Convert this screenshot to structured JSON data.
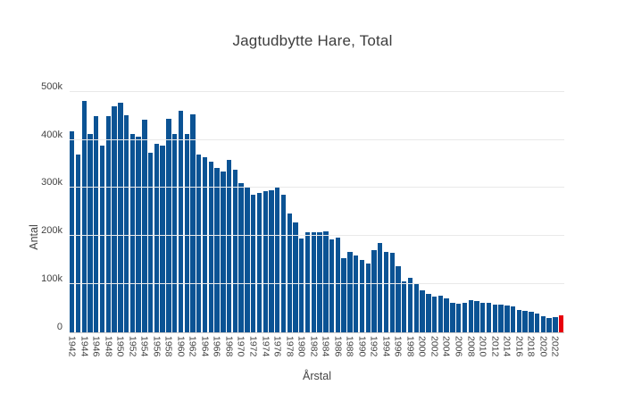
{
  "chart_data": {
    "type": "bar",
    "title": "Jagtudbytte Hare, Total",
    "xlabel": "Årstal",
    "ylabel": "Antal",
    "ylim": [
      0,
      505000
    ],
    "grid": true,
    "legend": "none",
    "background": "#ffffff",
    "bar_color": "#0b5394",
    "highlight_color": "#e8000b",
    "highlight_index": 81,
    "xtick_every": 2,
    "ytick_values": [
      0,
      100000,
      200000,
      300000,
      400000,
      500000
    ],
    "ytick_labels": [
      "0",
      "100k",
      "200k",
      "300k",
      "400k",
      "500k"
    ],
    "categories": [
      1942,
      1943,
      1944,
      1945,
      1946,
      1947,
      1948,
      1949,
      1950,
      1951,
      1952,
      1953,
      1954,
      1955,
      1956,
      1957,
      1958,
      1959,
      1960,
      1961,
      1962,
      1963,
      1964,
      1965,
      1966,
      1967,
      1968,
      1969,
      1970,
      1971,
      1972,
      1973,
      1974,
      1975,
      1976,
      1977,
      1978,
      1979,
      1980,
      1981,
      1982,
      1983,
      1984,
      1985,
      1986,
      1987,
      1988,
      1989,
      1990,
      1991,
      1992,
      1993,
      1994,
      1995,
      1996,
      1997,
      1998,
      1999,
      2000,
      2001,
      2002,
      2003,
      2004,
      2005,
      2006,
      2007,
      2008,
      2009,
      2010,
      2011,
      2012,
      2013,
      2014,
      2015,
      2016,
      2017,
      2018,
      2019,
      2020,
      2021,
      2022,
      2023
    ],
    "values": [
      417000,
      370000,
      481000,
      413000,
      450000,
      388000,
      450000,
      470000,
      477000,
      452000,
      413000,
      407000,
      442000,
      374000,
      391000,
      388000,
      444000,
      413000,
      460000,
      413000,
      453000,
      370000,
      364000,
      355000,
      341000,
      335000,
      359000,
      338000,
      310000,
      301000,
      286000,
      289000,
      293000,
      296000,
      302000,
      286000,
      247000,
      228000,
      195000,
      208000,
      208000,
      208000,
      209000,
      193000,
      196000,
      154000,
      168000,
      159000,
      151000,
      143000,
      170000,
      186000,
      168000,
      166000,
      138000,
      106000,
      113000,
      103000,
      87000,
      80000,
      75000,
      76000,
      70000,
      61000,
      59000,
      61000,
      67000,
      65000,
      61000,
      61000,
      58000,
      58000,
      56000,
      54000,
      47000,
      44000,
      43000,
      39000,
      33000,
      30000,
      31000,
      36000
    ]
  }
}
